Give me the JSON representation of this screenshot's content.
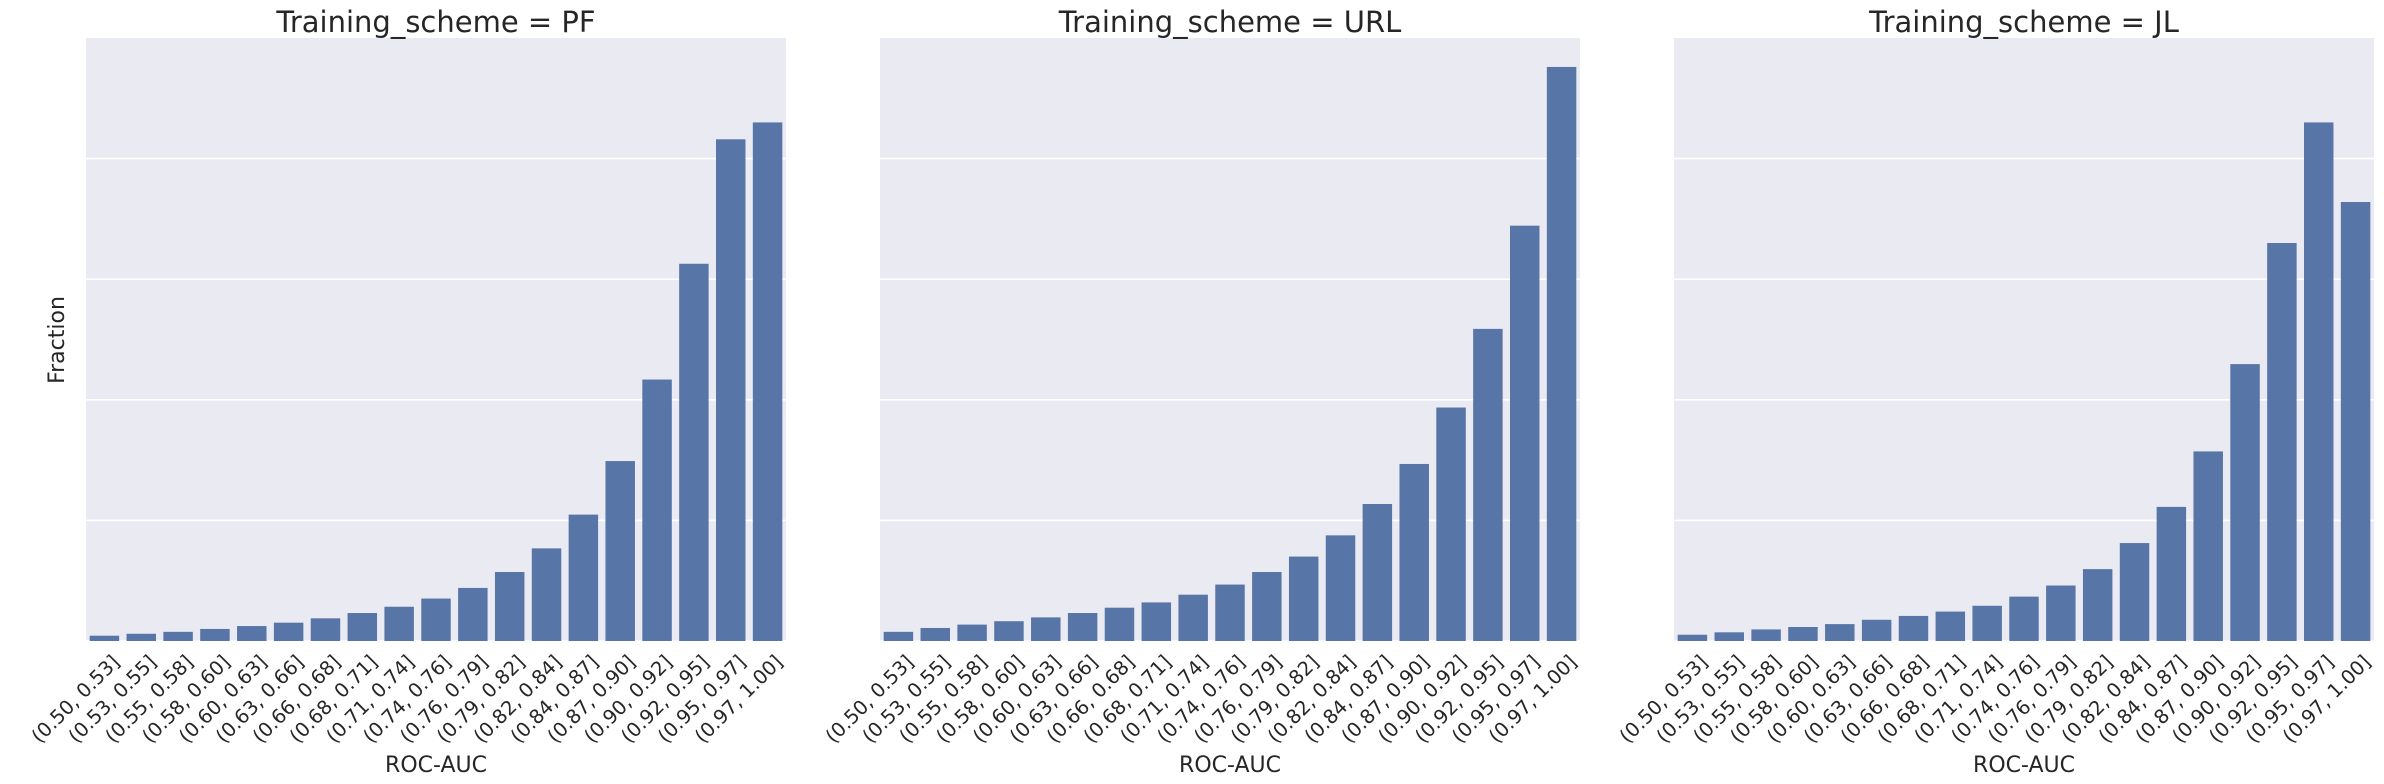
{
  "colors": {
    "bar": "#5875a7",
    "plot_bg": "#eaeaf2",
    "grid": "#ffffff",
    "text": "#262626"
  },
  "chart_data": [
    {
      "type": "bar",
      "title": "Training_scheme = PF",
      "xlabel": "ROC-AUC",
      "ylabel": "Fraction",
      "grid": true,
      "y_tick_labels_shown": false,
      "ylim": [
        0,
        0.125
      ],
      "categories": [
        "(0.50, 0.53]",
        "(0.53, 0.55]",
        "(0.55, 0.58]",
        "(0.58, 0.60]",
        "(0.60, 0.63]",
        "(0.63, 0.66]",
        "(0.66, 0.68]",
        "(0.68, 0.71]",
        "(0.71, 0.74]",
        "(0.74, 0.76]",
        "(0.76, 0.79]",
        "(0.79, 0.82]",
        "(0.82, 0.84]",
        "(0.84, 0.87]",
        "(0.87, 0.90]",
        "(0.90, 0.92]",
        "(0.92, 0.95]",
        "(0.95, 0.97]",
        "(0.97, 1.00]"
      ],
      "values": [
        0.0011,
        0.0015,
        0.0019,
        0.0025,
        0.0031,
        0.0038,
        0.0047,
        0.0058,
        0.0071,
        0.0088,
        0.011,
        0.0143,
        0.0192,
        0.0262,
        0.0373,
        0.0542,
        0.0782,
        0.104,
        0.1075
      ]
    },
    {
      "type": "bar",
      "title": "Training_scheme = URL",
      "xlabel": "ROC-AUC",
      "ylabel": "",
      "grid": true,
      "y_tick_labels_shown": false,
      "ylim": [
        0,
        0.125
      ],
      "categories": [
        "(0.50, 0.53]",
        "(0.53, 0.55]",
        "(0.55, 0.58]",
        "(0.58, 0.60]",
        "(0.60, 0.63]",
        "(0.63, 0.66]",
        "(0.66, 0.68]",
        "(0.68, 0.71]",
        "(0.71, 0.74]",
        "(0.74, 0.76]",
        "(0.76, 0.79]",
        "(0.79, 0.82]",
        "(0.82, 0.84]",
        "(0.84, 0.87]",
        "(0.87, 0.90]",
        "(0.90, 0.92]",
        "(0.92, 0.95]",
        "(0.95, 0.97]",
        "(0.97, 1.00]"
      ],
      "values": [
        0.0019,
        0.0027,
        0.0034,
        0.0041,
        0.0049,
        0.0058,
        0.0069,
        0.008,
        0.0096,
        0.0117,
        0.0143,
        0.0175,
        0.0219,
        0.0284,
        0.0367,
        0.0484,
        0.0647,
        0.0861,
        0.119
      ]
    },
    {
      "type": "bar",
      "title": "Training_scheme = JL",
      "xlabel": "ROC-AUC",
      "ylabel": "",
      "grid": true,
      "y_tick_labels_shown": false,
      "ylim": [
        0,
        0.125
      ],
      "categories": [
        "(0.50, 0.53]",
        "(0.53, 0.55]",
        "(0.55, 0.58]",
        "(0.58, 0.60]",
        "(0.60, 0.63]",
        "(0.63, 0.66]",
        "(0.66, 0.68]",
        "(0.68, 0.71]",
        "(0.71, 0.74]",
        "(0.74, 0.76]",
        "(0.76, 0.79]",
        "(0.79, 0.82]",
        "(0.82, 0.84]",
        "(0.84, 0.87]",
        "(0.87, 0.90]",
        "(0.90, 0.92]",
        "(0.92, 0.95]",
        "(0.95, 0.97]",
        "(0.97, 1.00]"
      ],
      "values": [
        0.0013,
        0.0018,
        0.0024,
        0.0029,
        0.0035,
        0.0044,
        0.0052,
        0.0061,
        0.0073,
        0.0092,
        0.0115,
        0.0149,
        0.0203,
        0.0278,
        0.0393,
        0.0574,
        0.0825,
        0.1075,
        0.091
      ]
    }
  ]
}
